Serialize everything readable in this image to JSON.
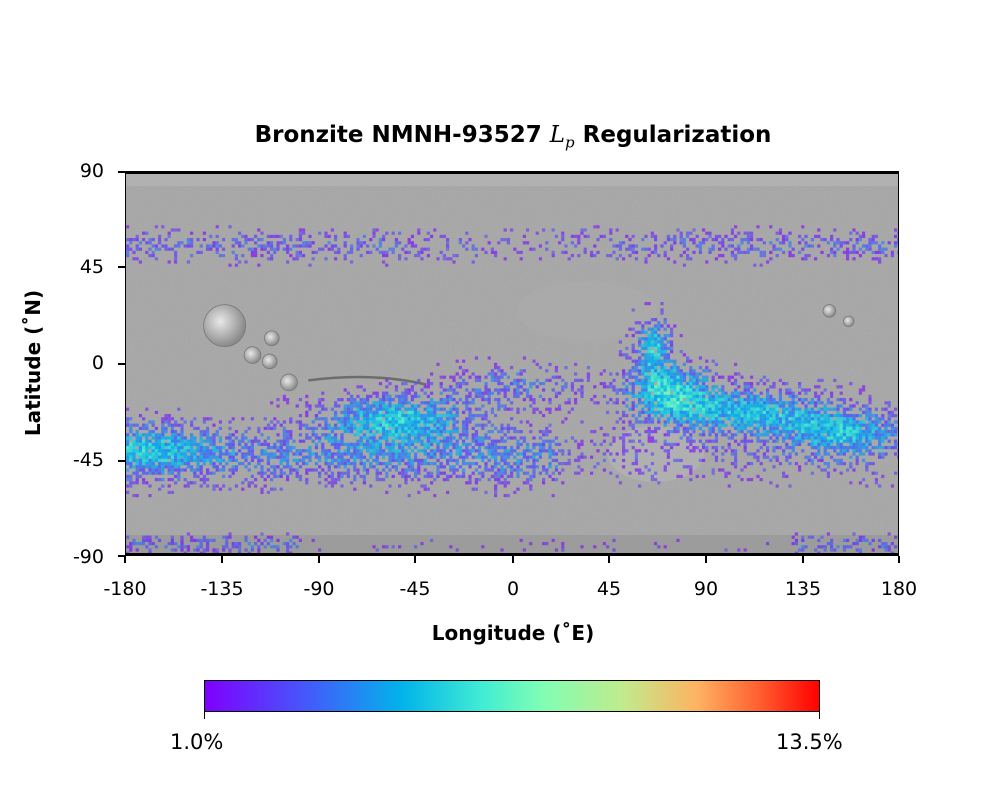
{
  "title": {
    "prefix": "Bronzite NMNH-93527 ",
    "math_letter": "L",
    "math_sub": "p",
    "suffix": " Regularization"
  },
  "axes": {
    "xlabel": "Longitude (˚E)",
    "ylabel": "Latitude (˚N)",
    "xticks": [
      "-180",
      "-135",
      "-90",
      "-45",
      "0",
      "45",
      "90",
      "135",
      "180"
    ],
    "yticks": [
      "90",
      "45",
      "0",
      "-45",
      "-90"
    ],
    "xlim": [
      -180,
      180
    ],
    "ylim": [
      -90,
      90
    ]
  },
  "colorbar": {
    "min_label": "1.0%",
    "max_label": "13.5%",
    "colormap": "rainbow",
    "range": [
      1.0,
      13.5
    ]
  },
  "map": {
    "basemap": "grayscale shaded relief",
    "colors": {
      "background": "#a6a6a6",
      "dark": "#6a6a6a",
      "light": "#d8d8d8"
    }
  }
}
